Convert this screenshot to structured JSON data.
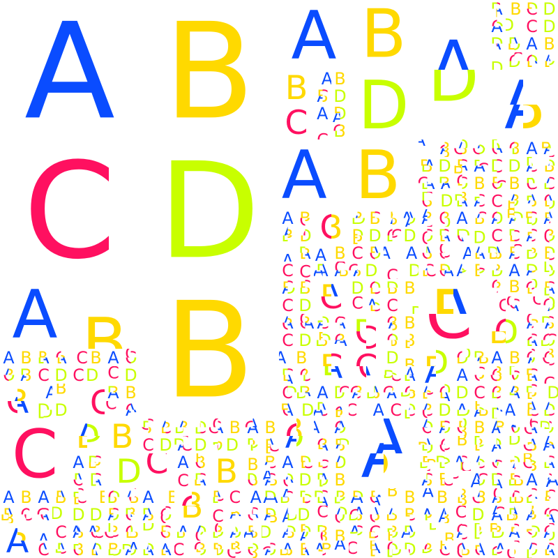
{
  "palette": {
    "blue": "#0A4CFF",
    "yellow": "#FFD900",
    "pink": "#FF1060",
    "lime": "#C8FF00",
    "background": "#FFFFFF"
  },
  "quadrants": [
    {
      "letter": "A",
      "color": "#0A4CFF"
    },
    {
      "letter": "B",
      "color": "#FFD900"
    },
    {
      "letter": "C",
      "color": "#FF1060"
    },
    {
      "letter": "D",
      "color": "#C8FF00"
    }
  ]
}
